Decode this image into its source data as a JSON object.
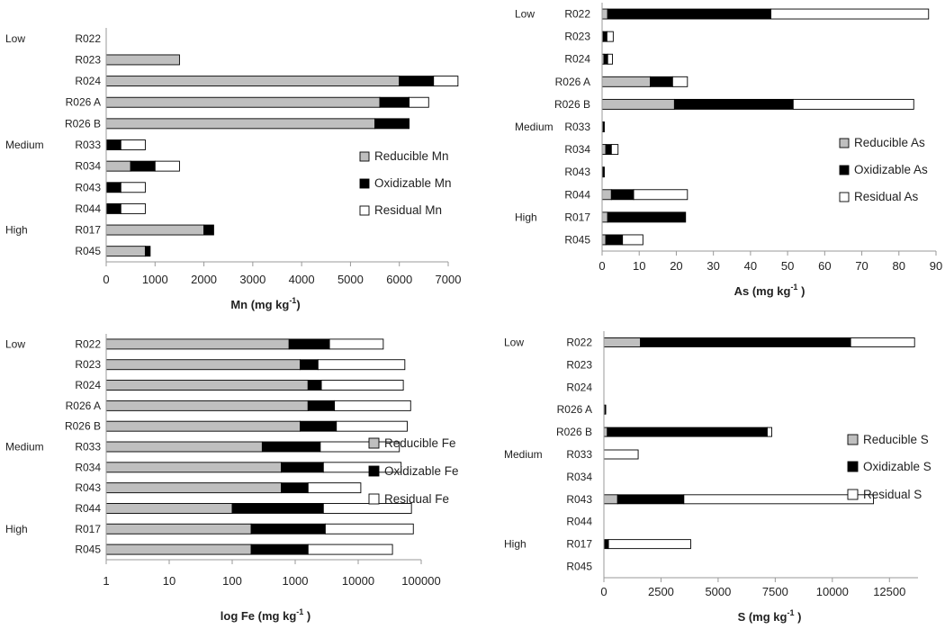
{
  "chart_data": [
    {
      "type": "bar",
      "stacked": true,
      "orientation": "horizontal",
      "xlabel": "Mn (mg kg",
      "xlabel_sup": "-1",
      "xlabel_tail": ")",
      "xscale": "linear",
      "xlim": [
        0,
        7000
      ],
      "xticks": [
        "0",
        "1000",
        "2000",
        "3000",
        "4000",
        "5000",
        "6000",
        "7000"
      ],
      "legend_position": "right",
      "categories": [
        "R022",
        "R023",
        "R024",
        "R026 A",
        "R026 B",
        "R033",
        "R034",
        "R043",
        "R044",
        "R017",
        "R045"
      ],
      "groups": [
        {
          "label": "Low",
          "category": "R022"
        },
        {
          "label": "Medium",
          "category": "R033"
        },
        {
          "label": "High",
          "category": "R017"
        }
      ],
      "series": [
        {
          "name": "Reducible Mn",
          "color": "#bfbfbf",
          "values": [
            0,
            1500,
            6000,
            5600,
            5500,
            0,
            500,
            0,
            0,
            2000,
            800
          ]
        },
        {
          "name": "Oxidizable Mn",
          "color": "#000000",
          "values": [
            0,
            0,
            700,
            600,
            700,
            300,
            500,
            300,
            300,
            200,
            100
          ]
        },
        {
          "name": "Residual Mn",
          "color": "#ffffff",
          "values": [
            0,
            0,
            500,
            400,
            0,
            500,
            500,
            500,
            500,
            0,
            0
          ]
        }
      ]
    },
    {
      "type": "bar",
      "stacked": true,
      "orientation": "horizontal",
      "xlabel": "As (mg kg",
      "xlabel_sup": "-1",
      "xlabel_tail": " )",
      "xscale": "linear",
      "xlim": [
        0,
        90
      ],
      "xticks": [
        "0",
        "10",
        "20",
        "30",
        "40",
        "50",
        "60",
        "70",
        "80",
        "90"
      ],
      "legend_position": "right",
      "categories": [
        "R022",
        "R023",
        "R024",
        "R026 A",
        "R026 B",
        "R033",
        "R034",
        "R043",
        "R044",
        "R017",
        "R045"
      ],
      "groups": [
        {
          "label": "Low",
          "category": "R022"
        },
        {
          "label": "Medium",
          "category": "R033"
        },
        {
          "label": "High",
          "category": "R017"
        }
      ],
      "series": [
        {
          "name": "Reducible As",
          "color": "#bfbfbf",
          "values": [
            1.5,
            0.3,
            0.5,
            13,
            19.5,
            0.3,
            1,
            0.2,
            2.5,
            1.5,
            1
          ]
        },
        {
          "name": "Oxidizable As",
          "color": "#000000",
          "values": [
            44,
            1,
            1,
            6,
            32,
            0.3,
            1.5,
            0.4,
            6,
            21,
            4.5
          ]
        },
        {
          "name": "Residual As",
          "color": "#ffffff",
          "values": [
            42.5,
            1.7,
            1.3,
            4,
            32.5,
            0,
            1.8,
            0,
            14.5,
            0,
            5.5
          ]
        }
      ]
    },
    {
      "type": "bar",
      "stacked": true,
      "orientation": "horizontal",
      "xlabel": "log Fe (mg kg",
      "xlabel_sup": "-1",
      "xlabel_tail": " )",
      "xscale": "log",
      "xlim": [
        1,
        100000
      ],
      "xticks": [
        "1",
        "10",
        "100",
        "1000",
        "10000",
        "100000"
      ],
      "legend_position": "right",
      "categories": [
        "R022",
        "R023",
        "R024",
        "R026 A",
        "R026 B",
        "R033",
        "R034",
        "R043",
        "R044",
        "R017",
        "R045"
      ],
      "groups": [
        {
          "label": "Low",
          "category": "R022"
        },
        {
          "label": "Medium",
          "category": "R033"
        },
        {
          "label": "High",
          "category": "R017"
        }
      ],
      "cumulative_totals": [
        [
          800,
          3500,
          25000
        ],
        [
          1200,
          2300,
          55000
        ],
        [
          1600,
          2600,
          52000
        ],
        [
          1600,
          4200,
          68000
        ],
        [
          1200,
          4500,
          60000
        ],
        [
          300,
          2500,
          45000
        ],
        [
          600,
          2800,
          48000
        ],
        [
          600,
          1600,
          11000
        ],
        [
          100,
          2800,
          70000
        ],
        [
          200,
          3000,
          75000
        ],
        [
          200,
          1600,
          35000
        ]
      ],
      "series": [
        {
          "name": "Reducible Fe",
          "color": "#bfbfbf",
          "values": [
            800,
            1200,
            1600,
            1600,
            1200,
            300,
            600,
            600,
            100,
            200,
            200
          ]
        },
        {
          "name": "Oxidizable Fe",
          "color": "#000000",
          "values": [
            2700,
            1100,
            1000,
            2600,
            3300,
            2200,
            2200,
            1000,
            2700,
            2800,
            1400
          ]
        },
        {
          "name": "Residual Fe",
          "color": "#ffffff",
          "values": [
            21500,
            52700,
            49400,
            63800,
            55500,
            42500,
            45200,
            9400,
            67200,
            72000,
            33400
          ]
        }
      ]
    },
    {
      "type": "bar",
      "stacked": true,
      "orientation": "horizontal",
      "xlabel": "S (mg kg",
      "xlabel_sup": "-1",
      "xlabel_tail": " )",
      "xscale": "linear",
      "xlim": [
        0,
        13750
      ],
      "xticks": [
        "0",
        "2500",
        "5000",
        "7500",
        "10000",
        "12500"
      ],
      "legend_position": "right",
      "categories": [
        "R022",
        "R023",
        "R024",
        "R026 A",
        "R026 B",
        "R033",
        "R034",
        "R043",
        "R044",
        "R017",
        "R045"
      ],
      "groups": [
        {
          "label": "Low",
          "category": "R022"
        },
        {
          "label": "Medium",
          "category": "R033"
        },
        {
          "label": "High",
          "category": "R017"
        }
      ],
      "series": [
        {
          "name": "Reducible S",
          "color": "#bfbfbf",
          "values": [
            1600,
            0,
            0,
            50,
            150,
            0,
            0,
            600,
            0,
            0,
            0
          ]
        },
        {
          "name": "Oxidizable S",
          "color": "#000000",
          "values": [
            9200,
            0,
            0,
            30,
            7000,
            0,
            0,
            2900,
            0,
            200,
            0
          ]
        },
        {
          "name": "Residual S",
          "color": "#ffffff",
          "values": [
            2800,
            0,
            0,
            0,
            200,
            1500,
            0,
            8300,
            0,
            3600,
            0
          ]
        }
      ]
    }
  ]
}
